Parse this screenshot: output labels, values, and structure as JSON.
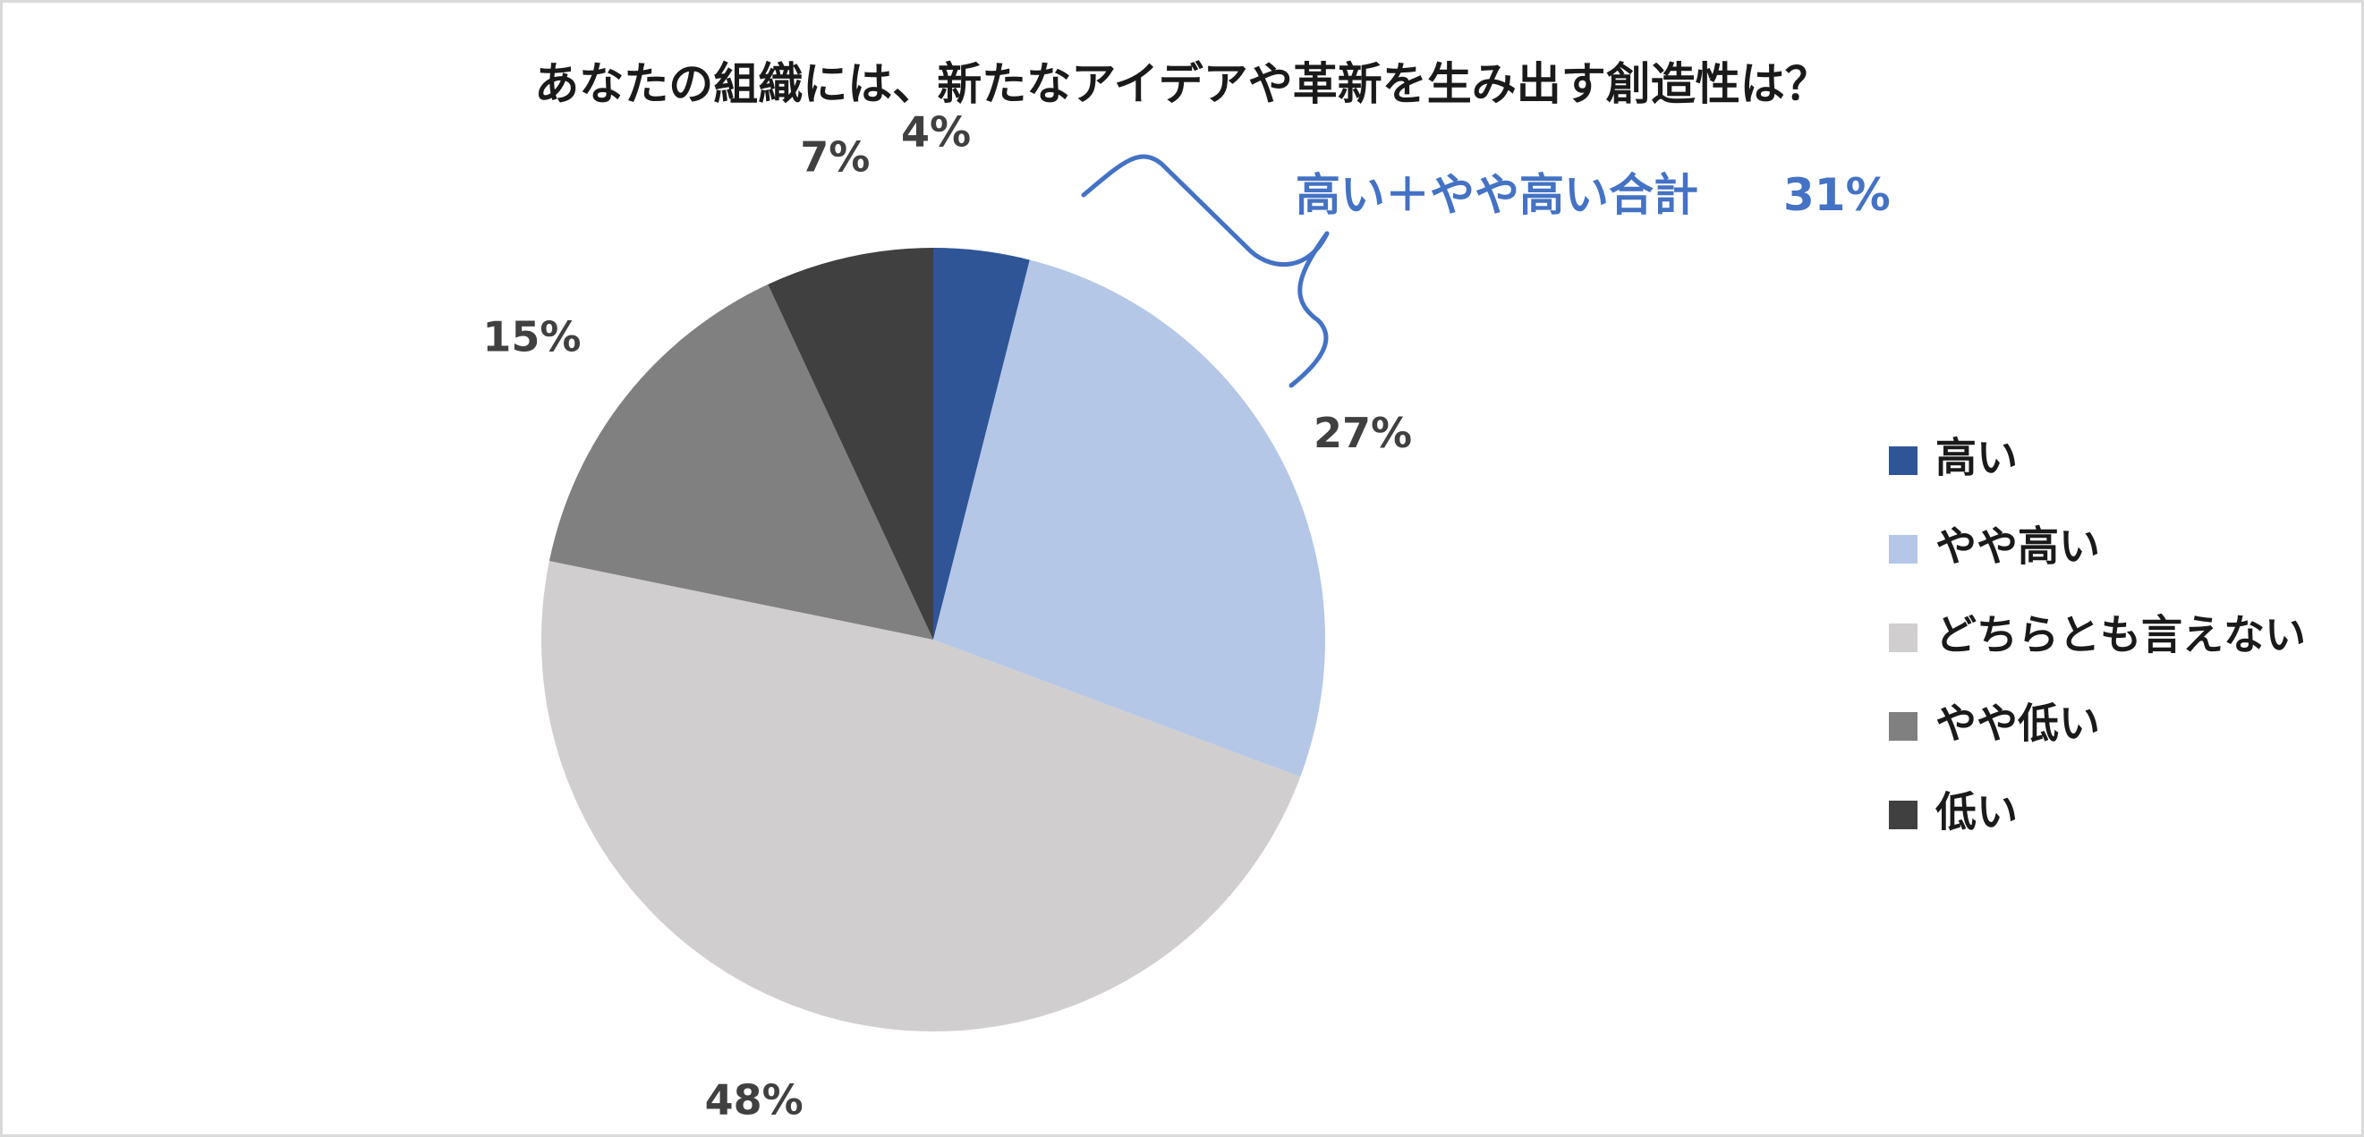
{
  "chart_data": {
    "type": "pie",
    "title": "あなたの組織には、新たなアイデアや革新を生み出す創造性は？",
    "categories": [
      "高い",
      "やや高い",
      "どちらとも言えない",
      "やや低い",
      "低い"
    ],
    "values": [
      4,
      27,
      48,
      15,
      7
    ],
    "value_labels": [
      "4%",
      "27%",
      "48%",
      "15%",
      "7%"
    ],
    "colors": [
      "#2f5597",
      "#b4c7e7",
      "#d0cece",
      "#808080",
      "#404040"
    ],
    "legend_position": "right",
    "start_angle": "12 o'clock, clockwise"
  },
  "annotation": {
    "label": "高い＋やや高い合計",
    "value": "31%",
    "color": "#4472c4"
  }
}
